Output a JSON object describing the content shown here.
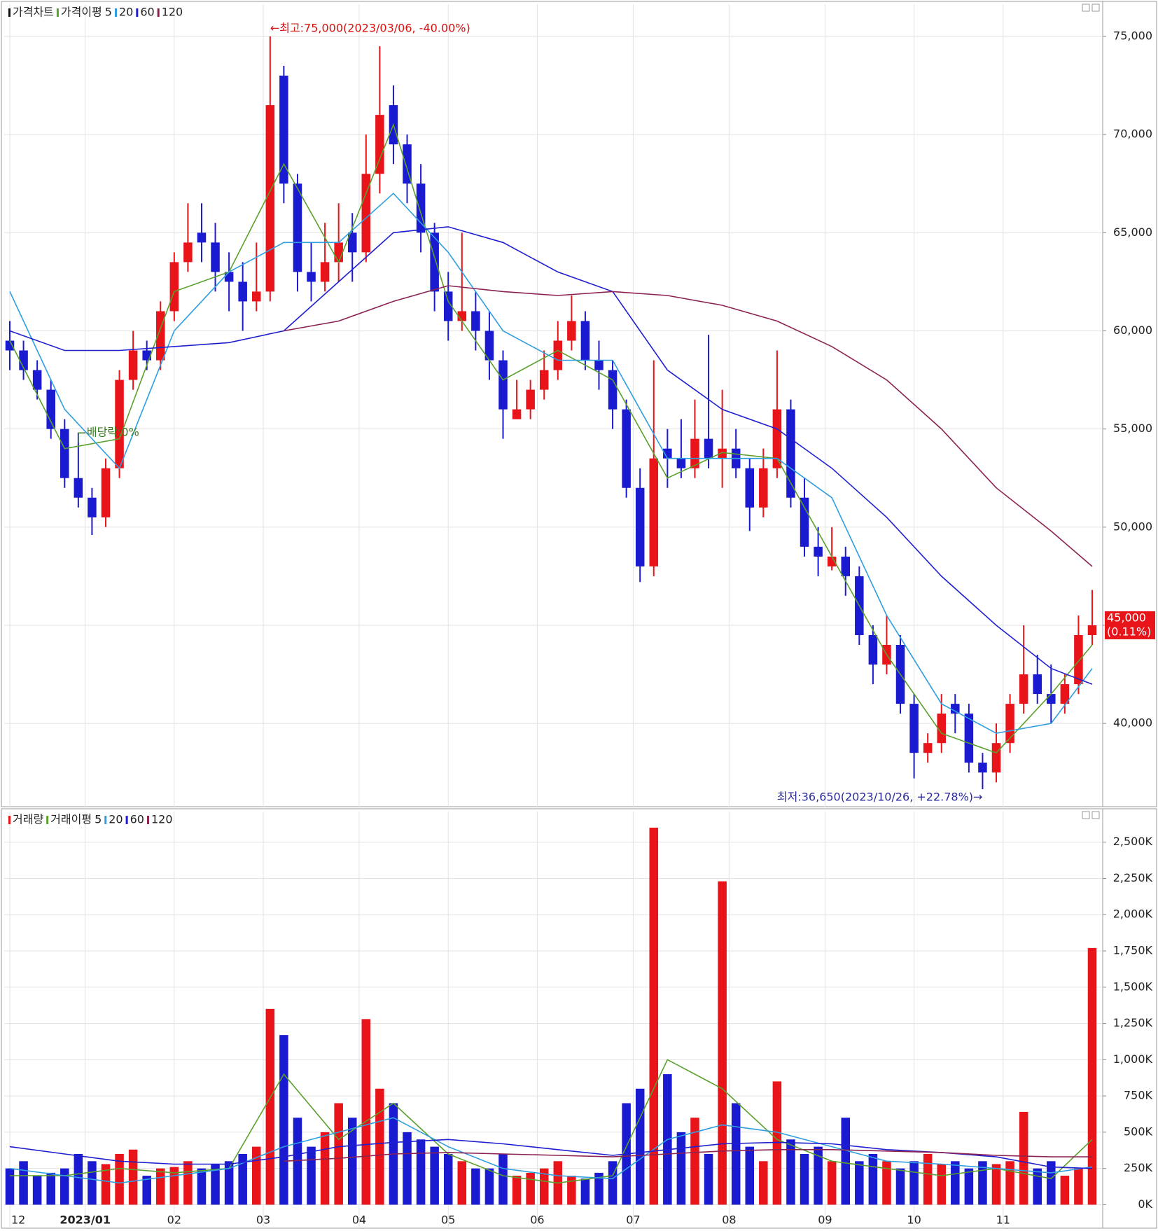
{
  "chart_data": [
    {
      "type": "candlestick",
      "title": "가격차트",
      "ma_title": "가격이평",
      "up_color": "#e8141a",
      "down_color": "#1a1ad0",
      "open": [
        59500,
        59000,
        58000,
        57000,
        55000,
        52500,
        51500,
        50500,
        53000,
        57500,
        59000,
        58500,
        61000,
        63500,
        65000,
        64500,
        63000,
        62500,
        61500,
        62000,
        73000,
        67500,
        63000,
        62500,
        63500,
        65000,
        64000,
        68000,
        71500,
        69500,
        67500,
        65000,
        62000,
        60500,
        61000,
        60000,
        58500,
        55500,
        56000,
        57000,
        58000,
        59500,
        60500,
        58500,
        58000,
        56000,
        52000,
        48000,
        54000,
        53500,
        53000,
        54500,
        53500,
        54000,
        53000,
        51000,
        53000,
        56000,
        51500,
        49000,
        48000,
        48500,
        47500,
        44500,
        43000,
        44000,
        41000,
        38500,
        39000,
        41000,
        40500,
        38000,
        37500,
        39000,
        41000,
        42500,
        41500,
        41000,
        42000,
        44500
      ],
      "high": [
        60500,
        59500,
        58500,
        57500,
        55500,
        54800,
        52000,
        53500,
        58000,
        60000,
        59500,
        61500,
        64000,
        66500,
        66500,
        65500,
        64000,
        63500,
        64500,
        75000,
        73500,
        68000,
        64500,
        65500,
        66500,
        66000,
        70000,
        74500,
        72500,
        70000,
        68500,
        65500,
        63000,
        65000,
        62000,
        61000,
        59000,
        57500,
        57500,
        59000,
        60500,
        61800,
        61000,
        59500,
        58500,
        56500,
        53000,
        58500,
        55000,
        55500,
        56500,
        59800,
        57000,
        55000,
        53500,
        54000,
        59000,
        56500,
        52500,
        50000,
        50000,
        49000,
        48000,
        45000,
        45500,
        44500,
        41500,
        39500,
        41500,
        41500,
        41000,
        38500,
        40000,
        41500,
        45000,
        43500,
        43000,
        42500,
        45500,
        46800
      ],
      "low": [
        58000,
        57500,
        56500,
        54500,
        52000,
        51000,
        49600,
        50000,
        52500,
        57000,
        58000,
        58000,
        60500,
        63000,
        63500,
        62000,
        61000,
        60000,
        61000,
        61500,
        66500,
        62000,
        61500,
        62000,
        62500,
        62500,
        63500,
        67000,
        68500,
        66500,
        64000,
        61000,
        59500,
        60000,
        59000,
        57500,
        54500,
        55500,
        55500,
        56500,
        57500,
        59000,
        58000,
        57000,
        55000,
        51500,
        47200,
        47500,
        52000,
        52500,
        52500,
        53000,
        52000,
        52500,
        49800,
        50500,
        52500,
        51000,
        48500,
        47500,
        47800,
        46500,
        44000,
        42000,
        42500,
        40500,
        37200,
        38000,
        38500,
        39500,
        37500,
        36650,
        37000,
        38500,
        40500,
        41000,
        40000,
        40500,
        41500,
        44000
      ],
      "close": [
        59000,
        58000,
        57000,
        55000,
        52500,
        51500,
        50500,
        53000,
        57500,
        59000,
        58500,
        61000,
        63500,
        64500,
        64500,
        63000,
        62500,
        61500,
        62000,
        71500,
        67500,
        63000,
        62500,
        63500,
        64500,
        64000,
        68000,
        71000,
        69500,
        67500,
        65000,
        62000,
        60500,
        61000,
        60000,
        58500,
        56000,
        56000,
        57000,
        58000,
        59500,
        60500,
        58500,
        58000,
        56000,
        52000,
        48000,
        53500,
        53500,
        53000,
        54500,
        53500,
        54000,
        53000,
        51000,
        53000,
        56000,
        51500,
        49000,
        48500,
        48500,
        47500,
        44500,
        43000,
        44000,
        41000,
        38500,
        39000,
        40500,
        40500,
        38000,
        37500,
        39000,
        41000,
        42500,
        41500,
        41000,
        42000,
        44500,
        45000
      ],
      "series": [
        {
          "name": "5",
          "color": "#5aa02c",
          "x": [
            0,
            4,
            8,
            12,
            16,
            20,
            24,
            28,
            32,
            36,
            40,
            44,
            48,
            52,
            56,
            60,
            64,
            68,
            72,
            76,
            79
          ],
          "values": [
            59500,
            54000,
            54500,
            62000,
            63000,
            68500,
            63500,
            70500,
            61500,
            57500,
            59000,
            57500,
            52500,
            53800,
            53500,
            48500,
            43500,
            39500,
            38500,
            41500,
            44000
          ]
        },
        {
          "name": "20",
          "color": "#2f9ee0",
          "x": [
            0,
            4,
            8,
            12,
            16,
            20,
            24,
            28,
            32,
            36,
            40,
            44,
            48,
            52,
            56,
            60,
            64,
            68,
            72,
            76,
            79
          ],
          "values": [
            62000,
            56000,
            53000,
            60000,
            63000,
            64500,
            64500,
            67000,
            64000,
            60000,
            58500,
            58500,
            53500,
            53500,
            53500,
            51500,
            45500,
            41000,
            39500,
            40000,
            42800
          ]
        },
        {
          "name": "60",
          "color": "#1f1fd0",
          "x": [
            0,
            4,
            8,
            12,
            16,
            20,
            24,
            28,
            32,
            36,
            40,
            44,
            48,
            52,
            56,
            60,
            64,
            68,
            72,
            76,
            79
          ],
          "values": [
            60000,
            59000,
            59000,
            59200,
            59400,
            60000,
            62500,
            65000,
            65300,
            64500,
            63000,
            62000,
            58000,
            56000,
            55000,
            53000,
            50500,
            47500,
            45000,
            42800,
            42000
          ]
        },
        {
          "name": "120",
          "color": "#8b2252",
          "x": [
            20,
            24,
            28,
            32,
            36,
            40,
            44,
            48,
            52,
            56,
            60,
            64,
            68,
            72,
            76,
            79
          ],
          "values": [
            60000,
            60500,
            61500,
            62300,
            62000,
            61800,
            62000,
            61800,
            61300,
            60500,
            59200,
            57500,
            55000,
            52000,
            49800,
            48000
          ]
        }
      ],
      "ylim": [
        35760,
        76640
      ],
      "yticks": [
        {
          "value": 40000,
          "label": "40,000"
        },
        {
          "value": 45000,
          "label": "45,000"
        },
        {
          "value": 50000,
          "label": "50,000"
        },
        {
          "value": 55000,
          "label": "55,000"
        },
        {
          "value": 60000,
          "label": "60,000"
        },
        {
          "value": 65000,
          "label": "65,000"
        },
        {
          "value": 70000,
          "label": "70,000"
        },
        {
          "value": 75000,
          "label": "75,000"
        }
      ],
      "annotations": [
        "←최고:75,000(2023/03/06, -40.00%)",
        "최저:36,650(2023/10/26, +22.78%)→",
        "배당락:0%"
      ],
      "price_label": [
        "45,000",
        "(0.11%)"
      ],
      "grid": true
    },
    {
      "type": "bar",
      "title": "거래량",
      "ma_title": "거래이평",
      "values": [
        250000,
        300000,
        200000,
        220000,
        250000,
        350000,
        300000,
        280000,
        350000,
        380000,
        200000,
        250000,
        260000,
        300000,
        250000,
        280000,
        300000,
        350000,
        400000,
        1350000,
        1170000,
        600000,
        400000,
        500000,
        700000,
        600000,
        1280000,
        800000,
        700000,
        500000,
        450000,
        400000,
        350000,
        300000,
        250000,
        250000,
        350000,
        200000,
        220000,
        250000,
        300000,
        200000,
        180000,
        220000,
        300000,
        700000,
        800000,
        2600000,
        900000,
        500000,
        600000,
        350000,
        2230000,
        700000,
        400000,
        300000,
        850000,
        450000,
        350000,
        400000,
        300000,
        600000,
        300000,
        350000,
        300000,
        250000,
        300000,
        350000,
        280000,
        300000,
        250000,
        300000,
        280000,
        300000,
        640000,
        250000,
        300000,
        200000,
        250000,
        1770000
      ],
      "series": [
        {
          "name": "5",
          "color": "#5aa02c",
          "x": [
            0,
            4,
            8,
            12,
            16,
            20,
            24,
            28,
            32,
            36,
            40,
            44,
            48,
            52,
            56,
            60,
            64,
            68,
            72,
            76,
            79
          ],
          "values": [
            200000,
            200000,
            250000,
            220000,
            250000,
            900000,
            450000,
            700000,
            350000,
            200000,
            150000,
            200000,
            1000000,
            800000,
            450000,
            300000,
            250000,
            200000,
            250000,
            180000,
            450000
          ]
        },
        {
          "name": "20",
          "color": "#2f9ee0",
          "x": [
            0,
            4,
            8,
            12,
            16,
            20,
            24,
            28,
            32,
            36,
            40,
            44,
            48,
            52,
            56,
            60,
            64,
            68,
            72,
            76,
            79
          ],
          "values": [
            250000,
            200000,
            150000,
            200000,
            250000,
            400000,
            500000,
            600000,
            400000,
            250000,
            200000,
            180000,
            450000,
            550000,
            500000,
            400000,
            300000,
            280000,
            250000,
            220000,
            260000
          ]
        },
        {
          "name": "60",
          "color": "#1f1fd0",
          "x": [
            0,
            4,
            8,
            12,
            16,
            20,
            24,
            28,
            32,
            36,
            40,
            44,
            48,
            52,
            56,
            60,
            64,
            68,
            72,
            76,
            79
          ],
          "values": [
            400000,
            350000,
            300000,
            280000,
            280000,
            330000,
            400000,
            430000,
            450000,
            420000,
            380000,
            340000,
            380000,
            420000,
            430000,
            420000,
            380000,
            360000,
            330000,
            260000,
            250000
          ]
        },
        {
          "name": "120",
          "color": "#8b2252",
          "x": [
            20,
            24,
            28,
            32,
            36,
            40,
            44,
            48,
            52,
            56,
            60,
            64,
            68,
            72,
            76,
            79
          ],
          "values": [
            300000,
            320000,
            350000,
            360000,
            350000,
            340000,
            330000,
            350000,
            370000,
            380000,
            380000,
            370000,
            360000,
            340000,
            330000,
            330000
          ]
        }
      ],
      "ylim": [
        -162000,
        2711000
      ],
      "yticks": [
        {
          "value": 0,
          "label": "0K"
        },
        {
          "value": 250000,
          "label": "250K"
        },
        {
          "value": 500000,
          "label": "500K"
        },
        {
          "value": 750000,
          "label": "750K"
        },
        {
          "value": 1000000,
          "label": "1,000K"
        },
        {
          "value": 1250000,
          "label": "1,250K"
        },
        {
          "value": 1500000,
          "label": "1,500K"
        },
        {
          "value": 1750000,
          "label": "1,750K"
        },
        {
          "value": 2000000,
          "label": "2,000K"
        },
        {
          "value": 2250000,
          "label": "2,250K"
        },
        {
          "value": 2500000,
          "label": "2,500K"
        }
      ],
      "xticks": [
        {
          "value": 0,
          "label": "12"
        },
        {
          "value": 5.5,
          "label": "2023/01"
        },
        {
          "value": 12,
          "label": "02"
        },
        {
          "value": 18.5,
          "label": "03"
        },
        {
          "value": 25.5,
          "label": "04"
        },
        {
          "value": 32,
          "label": "05"
        },
        {
          "value": 38.5,
          "label": "06"
        },
        {
          "value": 45.5,
          "label": "07"
        },
        {
          "value": 52.5,
          "label": "08"
        },
        {
          "value": 59.5,
          "label": "09"
        },
        {
          "value": 66,
          "label": "10"
        },
        {
          "value": 72.5,
          "label": "11"
        }
      ],
      "grid": true
    }
  ]
}
